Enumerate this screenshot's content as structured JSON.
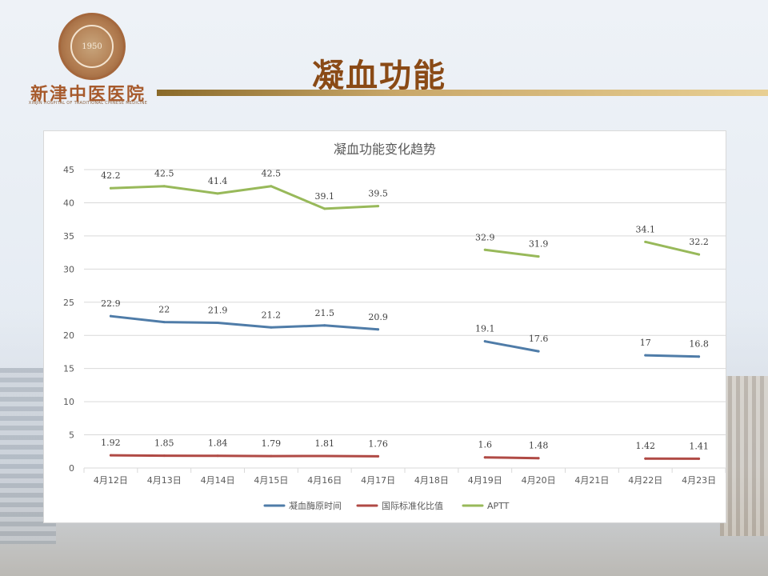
{
  "slide": {
    "title": "凝血功能",
    "logo_year": "1950",
    "logo_name": "新津中医医院",
    "logo_subtitle": "XINJIN HOSPITAL OF TRADITIONAL CHINESE MEDICINE"
  },
  "colors": {
    "series1": "#4f7ca8",
    "series2": "#b04a45",
    "series3": "#98b95a",
    "title_text": "#8a4a16",
    "gridline": "#d9d9d9"
  },
  "chart_data": {
    "type": "line",
    "title": "凝血功能变化趋势",
    "categories": [
      "4月12日",
      "4月13日",
      "4月14日",
      "4月15日",
      "4月16日",
      "4月17日",
      "4月18日",
      "4月19日",
      "4月20日",
      "4月21日",
      "4月22日",
      "4月23日"
    ],
    "series": [
      {
        "name": "凝血酶原时间",
        "values": [
          22.9,
          22,
          21.9,
          21.2,
          21.5,
          20.9,
          null,
          19.1,
          17.6,
          null,
          17,
          16.8
        ]
      },
      {
        "name": "国际标准化比值",
        "values": [
          1.92,
          1.85,
          1.84,
          1.79,
          1.81,
          1.76,
          null,
          1.6,
          1.48,
          null,
          1.42,
          1.41
        ]
      },
      {
        "name": "APTT",
        "values": [
          42.2,
          42.5,
          41.4,
          42.5,
          39.1,
          39.5,
          null,
          32.9,
          31.9,
          null,
          34.1,
          32.2
        ]
      }
    ],
    "labels": [
      [
        "22.9",
        "22",
        "21.9",
        "21.2",
        "21.5",
        "20.9",
        null,
        "19.1",
        "17.6",
        null,
        "17",
        "16.8"
      ],
      [
        "1.92",
        "1.85",
        "1.84",
        "1.79",
        "1.81",
        "1.76",
        null,
        "1.6",
        "1.48",
        null,
        "1.42",
        "1.41"
      ],
      [
        "42.2",
        "42.5",
        "41.4",
        "42.5",
        "39.1",
        "39.5",
        null,
        "32.9",
        "31.9",
        null,
        "34.1",
        "32.2"
      ]
    ],
    "ylim": [
      0,
      45
    ],
    "yticks": [
      "0",
      "5",
      "10",
      "15",
      "20",
      "25",
      "30",
      "35",
      "40",
      "45"
    ],
    "grid": true,
    "legend_position": "bottom"
  }
}
